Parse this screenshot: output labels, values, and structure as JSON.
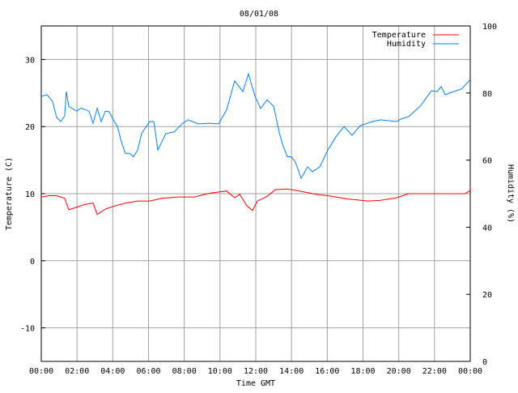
{
  "chart_data": {
    "type": "line",
    "title": "08/01/08",
    "xlabel": "Time GMT",
    "ylabel": "Temperature (C)",
    "y2label": "Humidity (%)",
    "xlim": [
      0,
      24
    ],
    "ylim": [
      -15,
      35
    ],
    "y2lim": [
      0,
      100
    ],
    "xticks": [
      "00:00",
      "02:00",
      "04:00",
      "06:00",
      "08:00",
      "10:00",
      "12:00",
      "14:00",
      "16:00",
      "18:00",
      "20:00",
      "22:00",
      "00:00"
    ],
    "yticks": [
      -10,
      0,
      10,
      20,
      30
    ],
    "y2ticks": [
      0,
      20,
      40,
      60,
      80,
      100
    ],
    "grid": true,
    "legend_position": "top-right",
    "series": [
      {
        "name": "Temperature",
        "axis": "left",
        "color": "#ff0000",
        "points": [
          [
            0,
            9.5
          ],
          [
            0.41,
            9.7
          ],
          [
            0.86,
            9.7
          ],
          [
            1.31,
            9.3
          ],
          [
            1.54,
            7.6
          ],
          [
            1.99,
            8.0
          ],
          [
            2.45,
            8.4
          ],
          [
            2.9,
            8.6
          ],
          [
            3.13,
            6.9
          ],
          [
            3.58,
            7.7
          ],
          [
            4.03,
            8.1
          ],
          [
            4.71,
            8.6
          ],
          [
            5.39,
            8.9
          ],
          [
            6.07,
            8.9
          ],
          [
            6.75,
            9.3
          ],
          [
            7.65,
            9.5
          ],
          [
            8.56,
            9.5
          ],
          [
            9.47,
            10.1
          ],
          [
            10.37,
            10.4
          ],
          [
            10.82,
            9.4
          ],
          [
            11.1,
            9.9
          ],
          [
            11.5,
            8.2
          ],
          [
            11.82,
            7.5
          ],
          [
            12.09,
            8.9
          ],
          [
            12.64,
            9.6
          ],
          [
            13.09,
            10.6
          ],
          [
            13.77,
            10.7
          ],
          [
            14.45,
            10.4
          ],
          [
            15.35,
            9.9
          ],
          [
            16.26,
            9.6
          ],
          [
            17.16,
            9.2
          ],
          [
            18.3,
            8.9
          ],
          [
            18.98,
            9.0
          ],
          [
            19.88,
            9.4
          ],
          [
            20.56,
            10.0
          ],
          [
            21.69,
            10.0
          ],
          [
            23.05,
            10.0
          ],
          [
            23.73,
            10.0
          ],
          [
            24,
            10.5
          ]
        ]
      },
      {
        "name": "Humidity",
        "axis": "right",
        "color": "#0080ff",
        "points": [
          [
            0,
            79
          ],
          [
            0.32,
            79.5
          ],
          [
            0.63,
            77.5
          ],
          [
            0.86,
            72.7
          ],
          [
            1.09,
            71.5
          ],
          [
            1.31,
            73.2
          ],
          [
            1.4,
            80.4
          ],
          [
            1.54,
            76
          ],
          [
            1.99,
            74.6
          ],
          [
            2.22,
            75.5
          ],
          [
            2.67,
            74.6
          ],
          [
            2.9,
            71
          ],
          [
            3.13,
            75.5
          ],
          [
            3.35,
            71.5
          ],
          [
            3.58,
            74.6
          ],
          [
            3.8,
            74.4
          ],
          [
            4.03,
            72
          ],
          [
            4.26,
            70
          ],
          [
            4.48,
            65.5
          ],
          [
            4.71,
            62
          ],
          [
            4.94,
            62
          ],
          [
            5.16,
            61
          ],
          [
            5.39,
            63
          ],
          [
            5.62,
            68
          ],
          [
            6.07,
            71.5
          ],
          [
            6.3,
            71.5
          ],
          [
            6.52,
            63
          ],
          [
            6.97,
            67.9
          ],
          [
            7.43,
            68.4
          ],
          [
            7.88,
            70.8
          ],
          [
            8.2,
            72
          ],
          [
            8.79,
            70.8
          ],
          [
            9.47,
            71
          ],
          [
            9.92,
            70.8
          ],
          [
            10.37,
            75
          ],
          [
            10.82,
            83.6
          ],
          [
            11.28,
            80.4
          ],
          [
            11.59,
            85.7
          ],
          [
            11.96,
            79
          ],
          [
            12.27,
            75.4
          ],
          [
            12.64,
            78
          ],
          [
            13,
            76
          ],
          [
            13.32,
            68
          ],
          [
            13.54,
            64
          ],
          [
            13.77,
            61
          ],
          [
            13.99,
            61
          ],
          [
            14.22,
            59.4
          ],
          [
            14.54,
            54.6
          ],
          [
            14.9,
            58
          ],
          [
            15.17,
            56.5
          ],
          [
            15.58,
            58
          ],
          [
            16.03,
            63
          ],
          [
            16.49,
            67
          ],
          [
            16.94,
            70
          ],
          [
            17.39,
            67.4
          ],
          [
            17.84,
            70.3
          ],
          [
            18.52,
            71.5
          ],
          [
            18.98,
            72
          ],
          [
            19.88,
            71.5
          ],
          [
            20.11,
            72.2
          ],
          [
            20.56,
            73
          ],
          [
            21.24,
            76.3
          ],
          [
            21.83,
            80.7
          ],
          [
            22.15,
            80.4
          ],
          [
            22.37,
            81.9
          ],
          [
            22.6,
            79.5
          ],
          [
            23.05,
            80.4
          ],
          [
            23.51,
            81.2
          ],
          [
            23.96,
            83.8
          ]
        ]
      }
    ]
  }
}
